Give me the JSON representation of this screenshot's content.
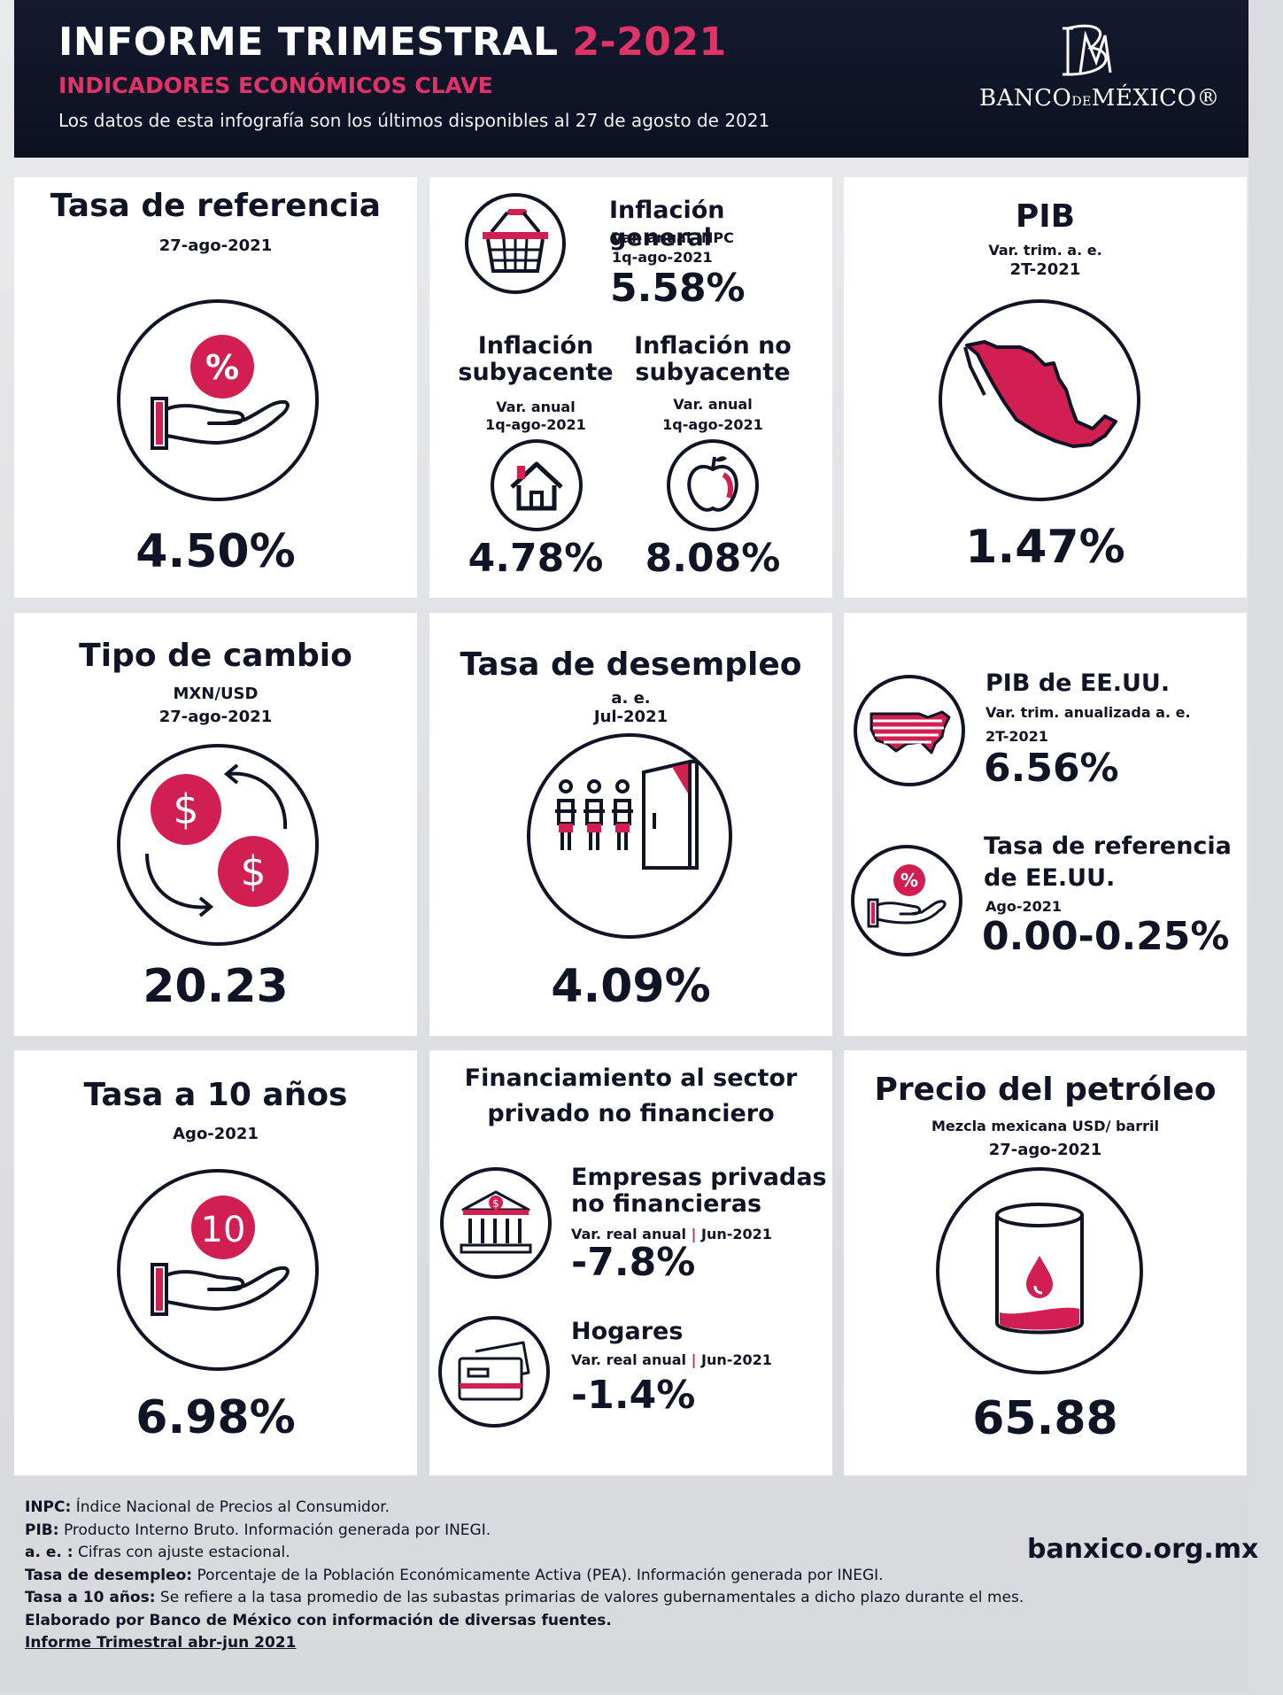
{
  "header": {
    "title_main": "INFORME TRIMESTRAL",
    "title_period": "2-2021",
    "subtitle": "INDICADORES ECONÓMICOS CLAVE",
    "note": "Los datos de esta infografía son los últimos disponibles al 27 de agosto de 2021",
    "logo_text_1": "BANCO",
    "logo_text_de": "DE",
    "logo_text_2": "MÉXICO®"
  },
  "tasa_referencia": {
    "title": "Tasa de referencia",
    "date": "27-ago-2021",
    "value": "4.50%",
    "icon": "hand-percent-icon",
    "badge": "%"
  },
  "inflacion": {
    "general_title": "Inflación general",
    "general_sub1": "Var. anual INPC",
    "general_sub2": "1q-ago-2021",
    "general_value": "5.58%",
    "sub_title_1": "Inflación",
    "sub_title_2": "subyacente",
    "sub_sub1": "Var. anual",
    "sub_sub2": "1q-ago-2021",
    "sub_value": "4.78%",
    "nosub_title_1": "Inflación no",
    "nosub_title_2": "subyacente",
    "nosub_sub1": "Var. anual",
    "nosub_sub2": "1q-ago-2021",
    "nosub_value": "8.08%"
  },
  "pib": {
    "title": "PIB",
    "sub1": "Var. trim. a. e.",
    "sub2": "2T-2021",
    "value": "1.47%"
  },
  "tipo_cambio": {
    "title": "Tipo de cambio",
    "sub1": "MXN/USD",
    "sub2": "27-ago-2021",
    "value": "20.23",
    "glyph": "$"
  },
  "desempleo": {
    "title": "Tasa de desempleo",
    "sub1": "a. e.",
    "sub2": "Jul-2021",
    "value": "4.09%"
  },
  "eeuu": {
    "pib_title": "PIB de EE.UU.",
    "pib_sub1": "Var. trim. anualizada a. e.",
    "pib_sub2": "2T-2021",
    "pib_value": "6.56%",
    "tasa_title_1": "Tasa de referencia",
    "tasa_title_2": "de EE.UU.",
    "tasa_sub": "Ago-2021",
    "tasa_value": "0.00-0.25%",
    "badge": "%"
  },
  "tasa10": {
    "title": "Tasa a 10 años",
    "sub": "Ago-2021",
    "value": "6.98%",
    "badge": "10"
  },
  "financiamiento": {
    "title_1": "Financiamiento al sector",
    "title_2": "privado no financiero",
    "emp_title_1": "Empresas privadas",
    "emp_title_2": "no financieras",
    "emp_sub_a": "Var. real anual",
    "emp_sep": "|",
    "emp_sub_b": "Jun-2021",
    "emp_value": "-7.8%",
    "hog_title": "Hogares",
    "hog_sub_a": "Var. real anual",
    "hog_sep": "|",
    "hog_sub_b": "Jun-2021",
    "hog_value": "-1.4%"
  },
  "petroleo": {
    "title": "Precio del petróleo",
    "sub1": "Mezcla mexicana USD/ barril",
    "sub2": "27-ago-2021",
    "value": "65.88"
  },
  "footer": {
    "l1_b": "INPC:",
    "l1": " Índice Nacional de Precios al Consumidor.",
    "l2_b": "PIB:",
    "l2": " Producto Interno Bruto. Información generada por INEGI.",
    "l3_b": "a. e. :",
    "l3": " Cifras con ajuste estacional.",
    "l4_b": "Tasa de desempleo:",
    "l4": " Porcentaje de la Población Económicamente Activa (PEA). Información generada por INEGI.",
    "l5_b": "Tasa a 10 años:",
    "l5": " Se refiere a la tasa promedio de las subastas primarias de valores gubernamentales a dicho plazo durante el mes.",
    "l6": "Elaborado por Banco de México con información de diversas fuentes.",
    "link": "Informe Trimestral abr-jun 2021",
    "site": "banxico.org.mx"
  },
  "colors": {
    "navy": "#111424",
    "accent": "#d11f52",
    "header_bg": "#0e1325"
  }
}
